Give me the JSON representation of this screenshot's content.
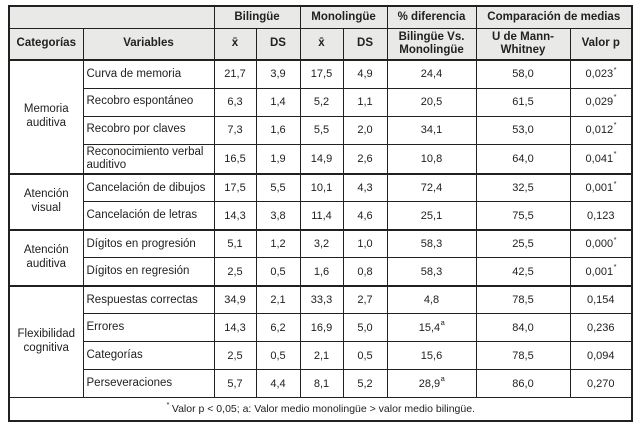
{
  "table": {
    "header": {
      "group_bilingue": "Bilingüe",
      "group_monolingue": "Monolingüe",
      "group_diferencia": "% diferencia",
      "group_comparacion": "Comparación de medias",
      "col_categorias": "Categorías",
      "col_variables": "Variables",
      "col_mean_bilingue": "x̄",
      "col_ds_bilingue": "DS",
      "col_mean_monolingue": "x̄",
      "col_ds_monolingue": "DS",
      "col_bil_vs_mono": "Bilingüe Vs. Monolingüe",
      "col_mann_whitney": "U de Mann-Whitney",
      "col_valor_p": "Valor p"
    },
    "sections": [
      {
        "category": "Memoria auditiva",
        "rows": [
          {
            "variable": "Curva de memoria",
            "bil_mean": "21,7",
            "bil_ds": "3,9",
            "mono_mean": "17,5",
            "mono_ds": "4,9",
            "diff": "24,4",
            "diff_sup": "",
            "u": "58,0",
            "p": "0,023",
            "p_sup": "*"
          },
          {
            "variable": "Recobro espontáneo",
            "bil_mean": "6,3",
            "bil_ds": "1,4",
            "mono_mean": "5,2",
            "mono_ds": "1,1",
            "diff": "20,5",
            "diff_sup": "",
            "u": "61,5",
            "p": "0,029",
            "p_sup": "*"
          },
          {
            "variable": "Recobro por claves",
            "bil_mean": "7,3",
            "bil_ds": "1,6",
            "mono_mean": "5,5",
            "mono_ds": "2,0",
            "diff": "34,1",
            "diff_sup": "",
            "u": "53,0",
            "p": "0,012",
            "p_sup": "*"
          },
          {
            "variable": "Reconocimiento verbal auditivo",
            "bil_mean": "16,5",
            "bil_ds": "1,9",
            "mono_mean": "14,9",
            "mono_ds": "2,6",
            "diff": "10,8",
            "diff_sup": "",
            "u": "64,0",
            "p": "0,041",
            "p_sup": "*"
          }
        ]
      },
      {
        "category": "Atención visual",
        "rows": [
          {
            "variable": "Cancelación de dibujos",
            "bil_mean": "17,5",
            "bil_ds": "5,5",
            "mono_mean": "10,1",
            "mono_ds": "4,3",
            "diff": "72,4",
            "diff_sup": "",
            "u": "32,5",
            "p": "0,001",
            "p_sup": "*"
          },
          {
            "variable": "Cancelación de letras",
            "bil_mean": "14,3",
            "bil_ds": "3,8",
            "mono_mean": "11,4",
            "mono_ds": "4,6",
            "diff": "25,1",
            "diff_sup": "",
            "u": "75,5",
            "p": "0,123",
            "p_sup": ""
          }
        ]
      },
      {
        "category": "Atención auditiva",
        "rows": [
          {
            "variable": "Dígitos en progresión",
            "bil_mean": "5,1",
            "bil_ds": "1,2",
            "mono_mean": "3,2",
            "mono_ds": "1,0",
            "diff": "58,3",
            "diff_sup": "",
            "u": "25,5",
            "p": "0,000",
            "p_sup": "*"
          },
          {
            "variable": "Dígitos en regresión",
            "bil_mean": "2,5",
            "bil_ds": "0,5",
            "mono_mean": "1,6",
            "mono_ds": "0,8",
            "diff": "58,3",
            "diff_sup": "",
            "u": "42,5",
            "p": "0,001",
            "p_sup": "*"
          }
        ]
      },
      {
        "category": "Flexibilidad cognitiva",
        "rows": [
          {
            "variable": "Respuestas correctas",
            "bil_mean": "34,9",
            "bil_ds": "2,1",
            "mono_mean": "33,3",
            "mono_ds": "2,7",
            "diff": "4,8",
            "diff_sup": "",
            "u": "78,5",
            "p": "0,154",
            "p_sup": ""
          },
          {
            "variable": "Errores",
            "bil_mean": "14,3",
            "bil_ds": "6,2",
            "mono_mean": "16,9",
            "mono_ds": "5,0",
            "diff": "15,4",
            "diff_sup": "a",
            "u": "84,0",
            "p": "0,236",
            "p_sup": ""
          },
          {
            "variable": "Categorías",
            "bil_mean": "2,5",
            "bil_ds": "0,5",
            "mono_mean": "2,1",
            "mono_ds": "0,5",
            "diff": "15,6",
            "diff_sup": "",
            "u": "78,5",
            "p": "0,094",
            "p_sup": ""
          },
          {
            "variable": "Perseveraciones",
            "bil_mean": "5,7",
            "bil_ds": "4,4",
            "mono_mean": "8,1",
            "mono_ds": "5,2",
            "diff": "28,9",
            "diff_sup": "a",
            "u": "86,0",
            "p": "0,270",
            "p_sup": ""
          }
        ]
      }
    ],
    "footnote_sup": "*",
    "footnote_text": " Valor p < 0,05; a: Valor medio monolingüe > valor medio bilingüe."
  }
}
